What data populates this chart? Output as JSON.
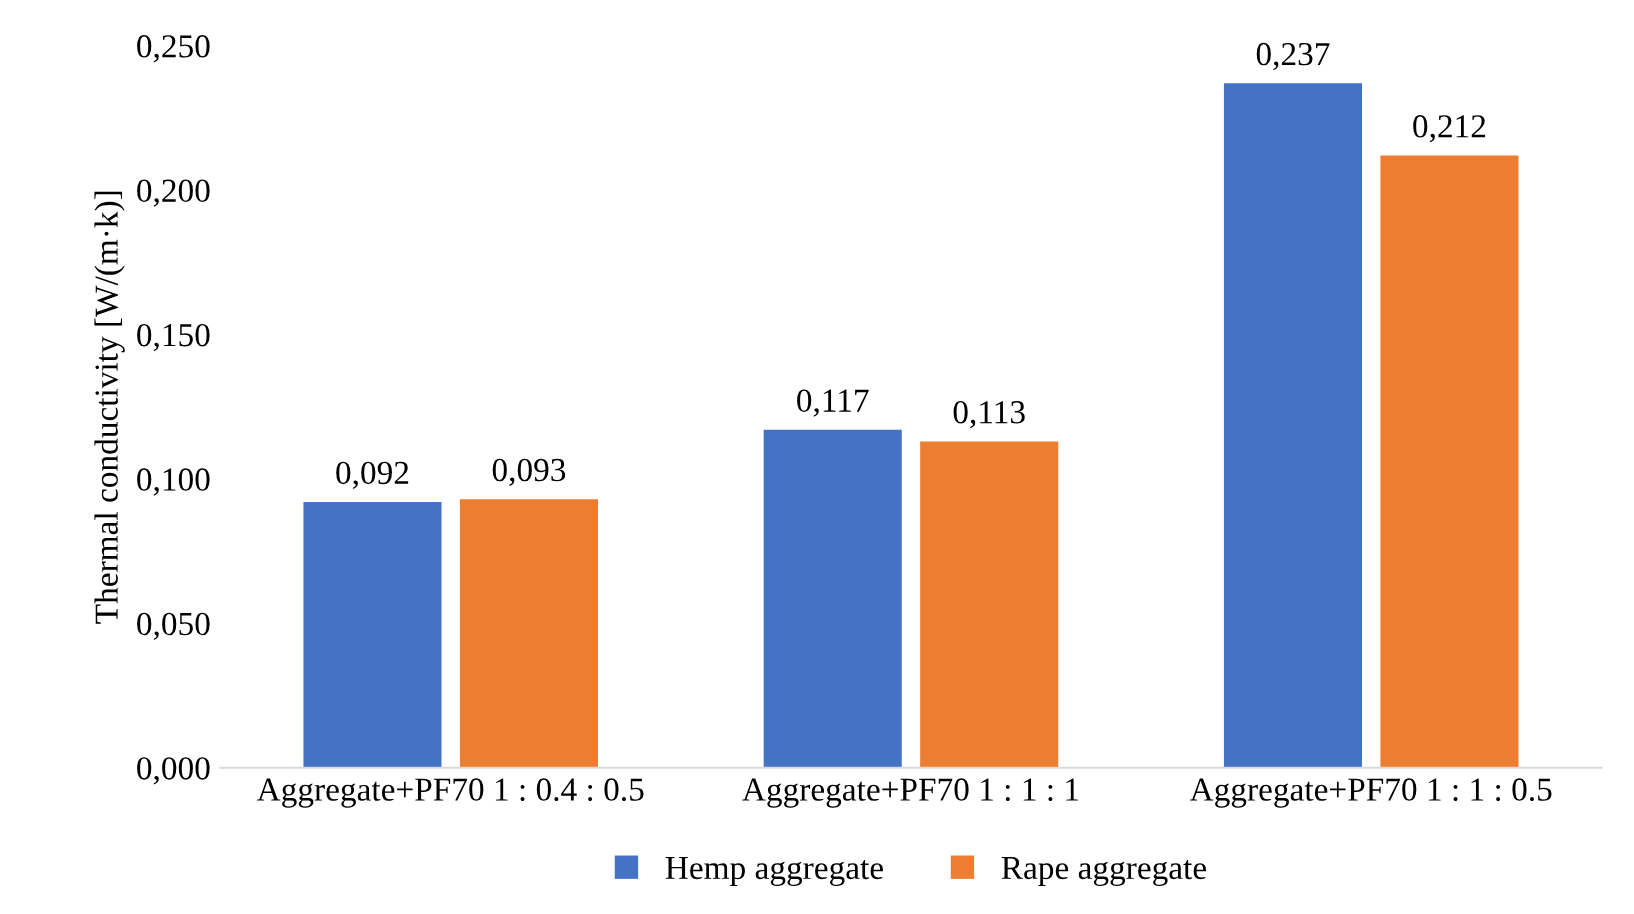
{
  "chart_data": {
    "type": "bar",
    "ylabel": "Thermal conductivity [W/(m·k)]",
    "categories": [
      "Aggregate+PF70 1 : 0.4 : 0.5",
      "Aggregate+PF70 1 : 1 : 1",
      "Aggregate+PF70 1 : 1 : 0.5"
    ],
    "series": [
      {
        "name": "Hemp aggregate",
        "color": "#4472c4",
        "values": [
          0.092,
          0.117,
          0.237
        ],
        "value_labels": [
          "0,092",
          "0,117",
          "0,237"
        ]
      },
      {
        "name": "Rape aggregate",
        "color": "#ed7d31",
        "values": [
          0.093,
          0.113,
          0.212
        ],
        "value_labels": [
          "0,093",
          "0,113",
          "0,212"
        ]
      }
    ],
    "ylim": [
      0,
      0.25
    ],
    "yticks": [
      {
        "value": 0,
        "label": "0,000"
      },
      {
        "value": 0.05,
        "label": "0,050"
      },
      {
        "value": 0.1,
        "label": "0,100"
      },
      {
        "value": 0.15,
        "label": "0,150"
      },
      {
        "value": 0.2,
        "label": "0,200"
      },
      {
        "value": 0.25,
        "label": "0,250"
      }
    ],
    "grid": false,
    "legend": "bottom"
  }
}
